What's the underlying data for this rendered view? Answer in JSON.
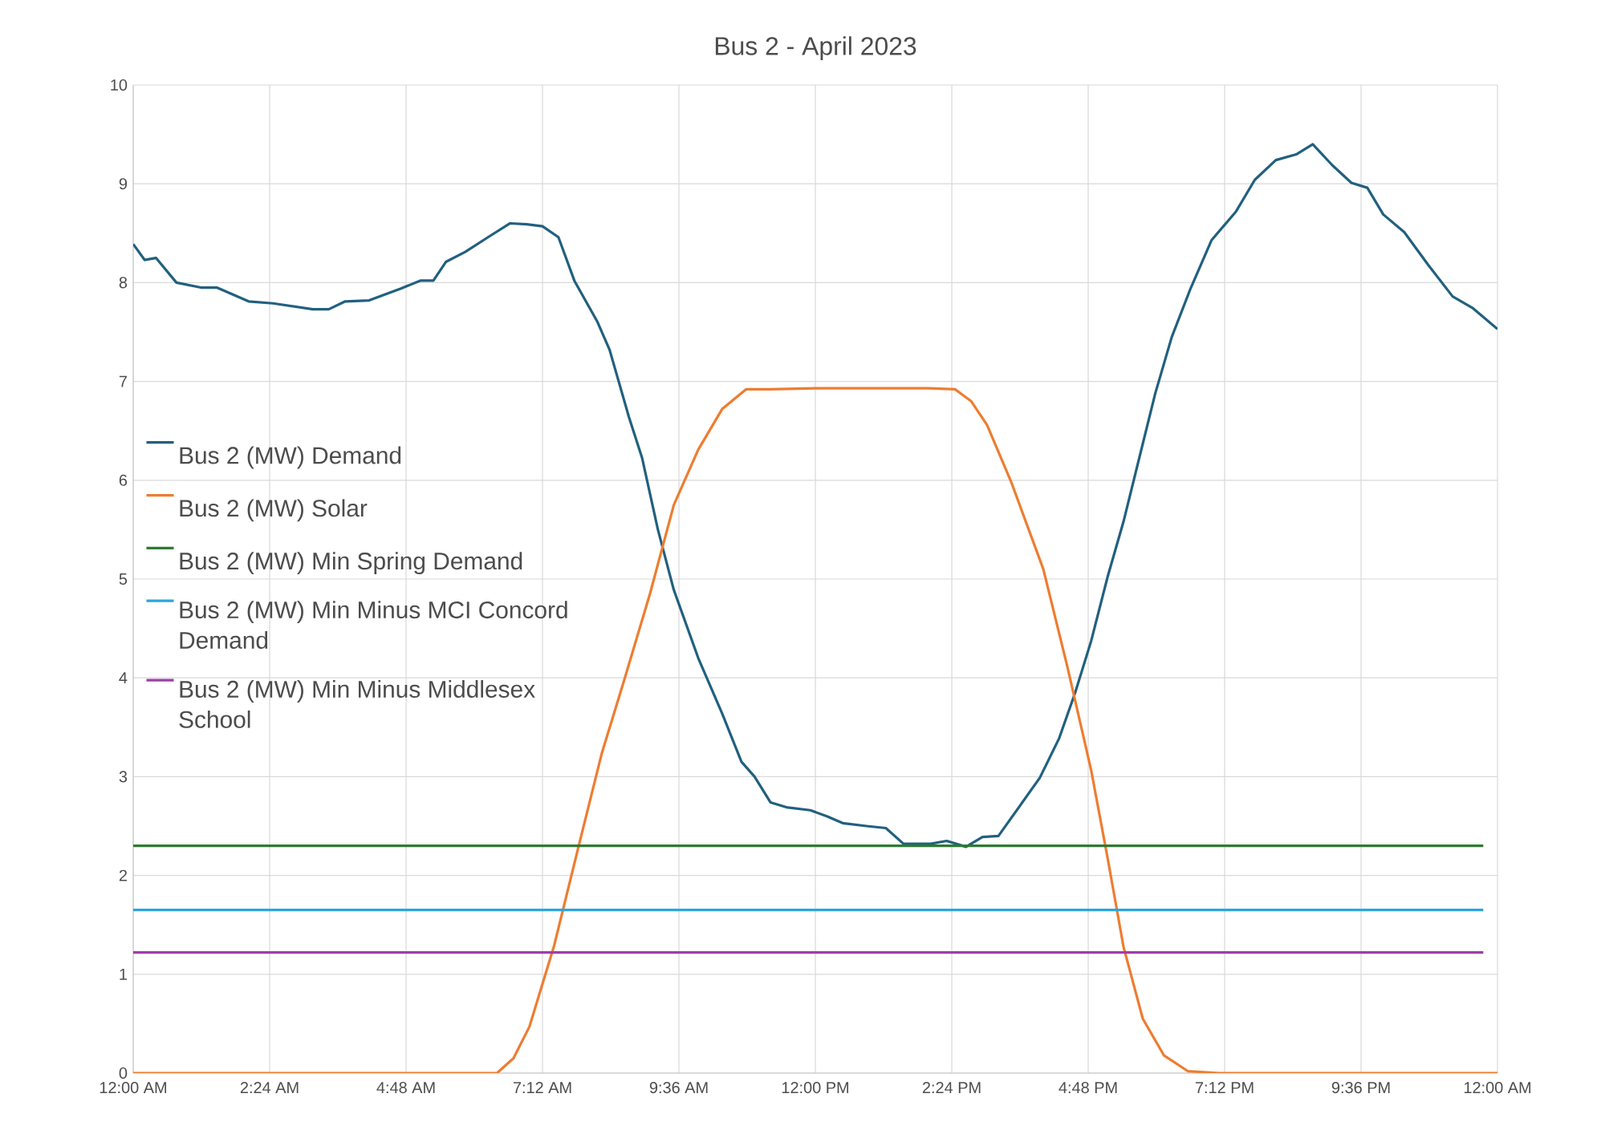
{
  "chart_data": {
    "type": "line",
    "title": "Bus 2 - April 2023",
    "xlim": [
      0,
      24
    ],
    "xticks": [
      {
        "value": 0,
        "label": "12:00 AM"
      },
      {
        "value": 2.4,
        "label": "2:24 AM"
      },
      {
        "value": 4.8,
        "label": "4:48 AM"
      },
      {
        "value": 7.2,
        "label": "7:12 AM"
      },
      {
        "value": 9.6,
        "label": "9:36 AM"
      },
      {
        "value": 12,
        "label": "12:00 PM"
      },
      {
        "value": 14.4,
        "label": "2:24 PM"
      },
      {
        "value": 16.8,
        "label": "4:48 PM"
      },
      {
        "value": 19.2,
        "label": "7:12 PM"
      },
      {
        "value": 21.6,
        "label": "9:36 PM"
      },
      {
        "value": 24,
        "label": "12:00 AM"
      }
    ],
    "ylim": [
      0,
      10
    ],
    "yticks": [
      0,
      1,
      2,
      3,
      4,
      5,
      6,
      7,
      8,
      9,
      10
    ],
    "grid": true,
    "legend": "left",
    "marker": "none",
    "line_style": "solid",
    "series": [
      {
        "name": "Bus 2 (MW) Demand",
        "color": "#21607f",
        "x": [
          0,
          0.2,
          0.4,
          0.76,
          1.19,
          1.47,
          2.03,
          2.46,
          3.16,
          3.44,
          3.73,
          4.15,
          4.71,
          5.05,
          5.28,
          5.5,
          5.84,
          6.27,
          6.63,
          6.92,
          7.2,
          7.48,
          7.76,
          8.16,
          8.38,
          8.72,
          8.95,
          9.23,
          9.51,
          9.94,
          10.36,
          10.7,
          10.93,
          11.21,
          11.49,
          11.91,
          12.2,
          12.48,
          12.9,
          13.24,
          13.55,
          14.03,
          14.31,
          14.65,
          14.94,
          15.22,
          15.58,
          15.95,
          16.29,
          16.57,
          16.85,
          17.14,
          17.42,
          17.7,
          17.98,
          18.27,
          18.6,
          18.97,
          19.4,
          19.73,
          20.1,
          20.47,
          20.75,
          21.09,
          21.43,
          21.71,
          21.99,
          22.36,
          22.78,
          23.21,
          23.57,
          24
        ],
        "values": [
          8.39,
          8.23,
          8.25,
          8.0,
          7.95,
          7.95,
          7.81,
          7.79,
          7.73,
          7.73,
          7.81,
          7.82,
          7.94,
          8.02,
          8.02,
          8.21,
          8.31,
          8.47,
          8.6,
          8.59,
          8.57,
          8.46,
          8.02,
          7.61,
          7.32,
          6.64,
          6.23,
          5.5,
          4.89,
          4.2,
          3.64,
          3.15,
          3.0,
          2.74,
          2.69,
          2.66,
          2.6,
          2.53,
          2.5,
          2.48,
          2.32,
          2.32,
          2.35,
          2.29,
          2.39,
          2.4,
          2.69,
          2.99,
          3.39,
          3.85,
          4.37,
          5.02,
          5.58,
          6.23,
          6.88,
          7.45,
          7.94,
          8.43,
          8.72,
          9.04,
          9.24,
          9.3,
          9.4,
          9.19,
          9.01,
          8.96,
          8.69,
          8.51,
          8.18,
          7.86,
          7.74,
          7.53
        ]
      },
      {
        "name": "Bus 2 (MW) Solar",
        "color": "#ed7d31",
        "x": [
          0,
          6.4,
          6.69,
          6.97,
          7.4,
          7.82,
          8.24,
          8.67,
          9.09,
          9.51,
          9.94,
          10.36,
          10.78,
          11.2,
          12,
          13,
          14,
          14.46,
          14.74,
          15.02,
          15.44,
          16.01,
          16.43,
          16.85,
          17.14,
          17.42,
          17.76,
          18.13,
          18.55,
          19.1,
          24
        ],
        "values": [
          0,
          0,
          0.15,
          0.47,
          1.28,
          2.26,
          3.23,
          4.04,
          4.85,
          5.75,
          6.31,
          6.72,
          6.92,
          6.92,
          6.93,
          6.93,
          6.93,
          6.92,
          6.8,
          6.56,
          5.99,
          5.1,
          4.12,
          3.07,
          2.18,
          1.28,
          0.55,
          0.18,
          0.02,
          0,
          0
        ]
      },
      {
        "name": "Bus 2 (MW) Min Spring Demand",
        "color": "#2e7a32",
        "x": [
          0,
          23.75
        ],
        "values": [
          2.3,
          2.3
        ]
      },
      {
        "name": "Bus 2 (MW) Min Minus MCI Concord Demand",
        "color": "#2aa6de",
        "x": [
          0,
          23.75
        ],
        "values": [
          1.65,
          1.65
        ]
      },
      {
        "name": "Bus 2 (MW) Min Minus Middlesex School",
        "color": "#a13ca9",
        "x": [
          0,
          23.75
        ],
        "values": [
          1.22,
          1.22
        ]
      }
    ]
  }
}
